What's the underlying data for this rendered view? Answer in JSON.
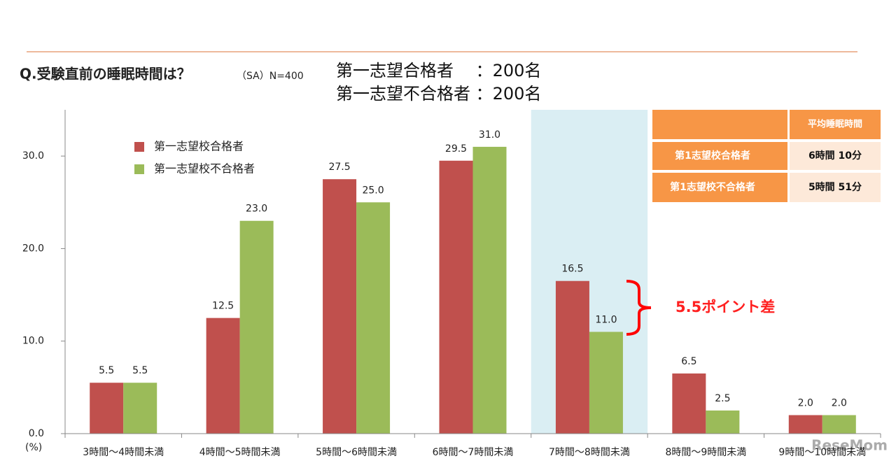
{
  "chart_data": {
    "type": "bar",
    "title": "Q.受験直前の睡眠時間は？",
    "subtitle": "（SA）N=400",
    "notes": [
      "第一志望合格者　  ：200名",
      "第一志望不合格者 ：200名"
    ],
    "y_unit": "(%)",
    "categories": [
      "3時間～4時間未満",
      "4時間～5時間未満",
      "5時間～6時間未満",
      "6時間～7時間未満",
      "7時間～8時間未満",
      "8時間～9時間未満",
      "9時間～10時間未満"
    ],
    "series": [
      {
        "name": "第一志望校合格者",
        "color": "#c0504d",
        "values": [
          5.5,
          12.5,
          27.5,
          29.5,
          16.5,
          6.5,
          2.0
        ],
        "value_labels": [
          "5.5",
          "12.5",
          "27.5",
          "29.5",
          "16.5",
          "6.5",
          "2.0"
        ]
      },
      {
        "name": "第一志望校不合格者",
        "color": "#9bbb59",
        "values": [
          5.5,
          23.0,
          25.0,
          31.0,
          11.0,
          2.5,
          2.0
        ],
        "value_labels": [
          "5.5",
          "23.0",
          "25.0",
          "31.0",
          "11.0",
          "2.5",
          "2.0"
        ]
      }
    ],
    "ylim": [
      0,
      35
    ],
    "yticks": [
      {
        "value": 0,
        "label": "0.0"
      },
      {
        "value": 10,
        "label": "10.0"
      },
      {
        "value": 20,
        "label": "20.0"
      },
      {
        "value": 30,
        "label": "30.0"
      }
    ],
    "highlight_index": 4,
    "annotation": "5.5ポイント差"
  },
  "table": {
    "header": "平均睡眠時間",
    "rows": [
      [
        "第1志望校合格者",
        "6時間 10分"
      ],
      [
        "第1志望校不合格者",
        "5時間 51分"
      ]
    ]
  },
  "watermark": "ReseMom"
}
